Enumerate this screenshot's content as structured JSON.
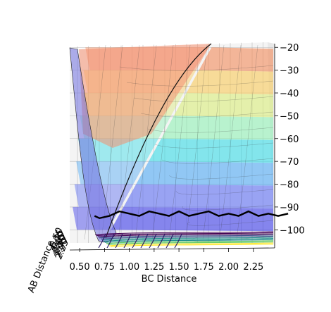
{
  "chart_data": {
    "type": "surface-3d",
    "title": "",
    "xlabel": "BC Distance",
    "ylabel": "AB Distance",
    "zlabel": "",
    "x_ticks": [
      "0.50",
      "0.75",
      "1.00",
      "1.25",
      "1.50",
      "1.75",
      "2.00",
      "2.25"
    ],
    "z_ticks": [
      "−20",
      "−30",
      "−40",
      "−50",
      "−60",
      "−70",
      "−80",
      "−90",
      "−100"
    ],
    "y_ticks_overlapping": [
      "0.50",
      "0.75",
      "1.00",
      "1.25",
      "1.50",
      "1.75",
      "2.00",
      "2.25"
    ],
    "xlim": [
      0.35,
      2.45
    ],
    "zlim": [
      -103,
      -19
    ],
    "colormap": "jet",
    "contour_colormap": "viridis",
    "trajectory_color": "#000000",
    "surface_fill_bands": [
      {
        "z_range": [
          -100,
          -90
        ],
        "color": "#3a3ae8"
      },
      {
        "z_range": [
          -90,
          -80
        ],
        "color": "#5c6cf2"
      },
      {
        "z_range": [
          -80,
          -70
        ],
        "color": "#4ea8f3"
      },
      {
        "z_range": [
          -70,
          -60
        ],
        "color": "#37dbe6"
      },
      {
        "z_range": [
          -60,
          -50
        ],
        "color": "#8ff0b4"
      },
      {
        "z_range": [
          -50,
          -40
        ],
        "color": "#d9ec7a"
      },
      {
        "z_range": [
          -40,
          -30
        ],
        "color": "#f8c95a"
      },
      {
        "z_range": [
          -30,
          -20
        ],
        "color": "#f18a5a"
      }
    ],
    "trajectory": {
      "description_free": false,
      "x": [
        0.65,
        0.7,
        0.8,
        0.9,
        1.0,
        1.1,
        1.2,
        1.3,
        1.4,
        1.5,
        1.6,
        1.7,
        1.8,
        1.9,
        2.0,
        2.1,
        2.2,
        2.3,
        2.4,
        2.5,
        2.6
      ],
      "z": [
        -97,
        -98,
        -97,
        -95,
        -96,
        -97,
        -95,
        -96,
        -97,
        -95,
        -97,
        -96,
        -95,
        -97,
        -96,
        -97,
        -95,
        -97,
        -96,
        -97,
        -96
      ]
    }
  },
  "colors": {
    "background": "#ffffff",
    "pane": "#f2f2f2",
    "grid": "#b0b0b0"
  }
}
